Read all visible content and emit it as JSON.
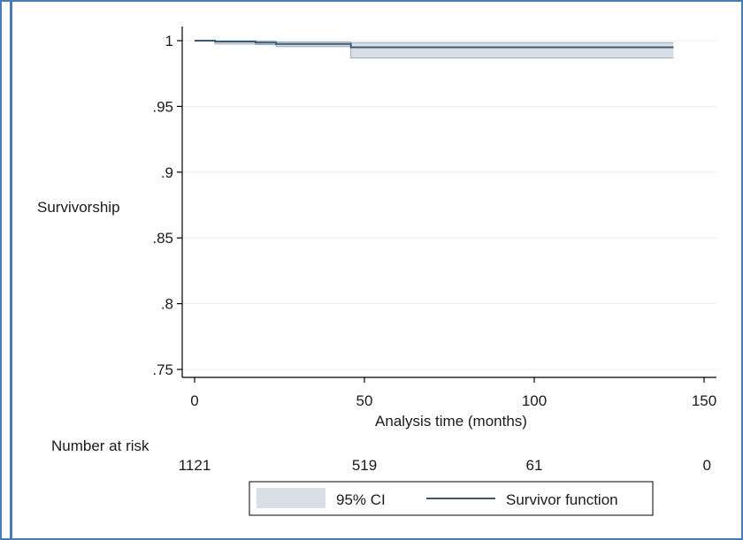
{
  "chart_data": {
    "type": "line",
    "title": "",
    "xlabel": "Analysis time (months)",
    "ylabel": "Survivorship",
    "xlim": [
      0,
      150
    ],
    "ylim": [
      0.75,
      1
    ],
    "x_ticks": [
      0,
      50,
      100,
      150
    ],
    "x_tick_labels": [
      "0",
      "50",
      "100",
      "150"
    ],
    "y_ticks": [
      0.75,
      0.8,
      0.85,
      0.9,
      0.95,
      1
    ],
    "y_tick_labels": [
      ".75",
      ".8",
      ".85",
      ".9",
      ".95",
      "1"
    ],
    "grid": "horizontal",
    "legend_position": "bottom",
    "series": [
      {
        "name": "Survivor function",
        "color": "#3b5a75",
        "step": true,
        "x": [
          0,
          6,
          18,
          24,
          46,
          141
        ],
        "y": [
          1.0,
          0.9993,
          0.9985,
          0.9975,
          0.995,
          0.995
        ]
      }
    ],
    "ci_band": {
      "name": "95% CI",
      "color": "#d9dfe6",
      "step": true,
      "x": [
        0,
        6,
        18,
        24,
        46,
        141
      ],
      "lower": [
        1.0,
        0.9975,
        0.997,
        0.9955,
        0.9868,
        0.9868
      ],
      "upper": [
        1.0,
        0.9998,
        0.9996,
        0.999,
        0.9985,
        0.9985
      ]
    },
    "risk_table": {
      "label": "Number at risk",
      "times": [
        0,
        50,
        100,
        150
      ],
      "counts": [
        "1121",
        "519",
        "61",
        "0"
      ]
    }
  },
  "colors": {
    "frame_border": "#4a7ab5",
    "axis": "#000000",
    "grid": "#e8edf2",
    "legend_border": "#000000"
  }
}
